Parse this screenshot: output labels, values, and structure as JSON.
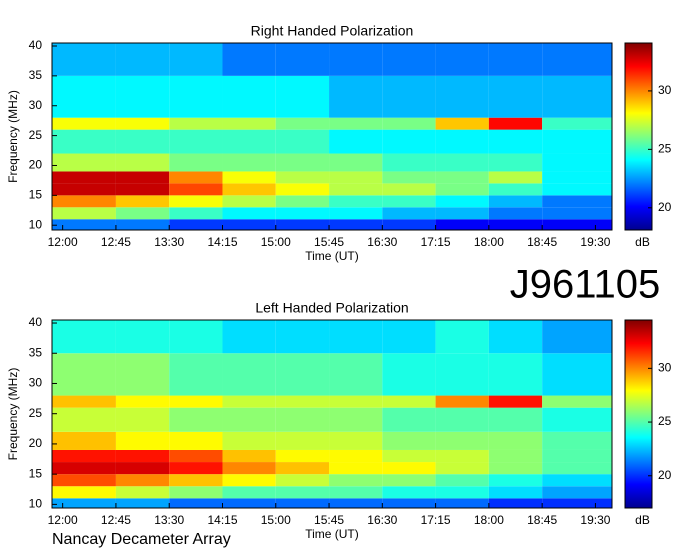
{
  "page_title": "J961105",
  "footer": "Nancay Decameter Array",
  "chart_data": [
    {
      "type": "heatmap",
      "title": "Right Handed Polarization",
      "xlabel": "Time (UT)",
      "ylabel": "Frequency (MHz)",
      "colormap": "jet",
      "xbins": [
        711,
        765,
        810,
        855,
        900,
        945,
        990,
        1035,
        1080,
        1125,
        1184
      ],
      "ybins": [
        9,
        11,
        13,
        15,
        17,
        19,
        22,
        26,
        28,
        35,
        40.5
      ],
      "values": [
        [
          22,
          22,
          21,
          21,
          21,
          21,
          21,
          20,
          20,
          20
        ],
        [
          27,
          26,
          25,
          24,
          24,
          24,
          23,
          23,
          22,
          22
        ],
        [
          30,
          29,
          28,
          27,
          26,
          25,
          25,
          24,
          23,
          22
        ],
        [
          33,
          33,
          31,
          29,
          28,
          27,
          27,
          26,
          25,
          24
        ],
        [
          33,
          33,
          30,
          28,
          27,
          27,
          26,
          26,
          27,
          24
        ],
        [
          27,
          27,
          26,
          26,
          26,
          26,
          25,
          25,
          25,
          24
        ],
        [
          25,
          25,
          25,
          25,
          25,
          24,
          24,
          24,
          24,
          24
        ],
        [
          28,
          28,
          27,
          27,
          26,
          26,
          26,
          29,
          32,
          25
        ],
        [
          24,
          24,
          24,
          24,
          24,
          23,
          23,
          23,
          23,
          23
        ],
        [
          23,
          23,
          23,
          22,
          22,
          22,
          22,
          22,
          22,
          22
        ]
      ],
      "xlim": [
        711,
        1184
      ],
      "ylim": [
        9.2,
        40.5
      ],
      "xticks": [
        {
          "value": 720,
          "label": "12:00"
        },
        {
          "value": 765,
          "label": "12:45"
        },
        {
          "value": 810,
          "label": "13:30"
        },
        {
          "value": 855,
          "label": "14:15"
        },
        {
          "value": 900,
          "label": "15:00"
        },
        {
          "value": 945,
          "label": "15:45"
        },
        {
          "value": 990,
          "label": "16:30"
        },
        {
          "value": 1035,
          "label": "17:15"
        },
        {
          "value": 1080,
          "label": "18:00"
        },
        {
          "value": 1125,
          "label": "18:45"
        },
        {
          "value": 1170,
          "label": "19:30"
        }
      ],
      "yticks": [
        10,
        15,
        20,
        25,
        30,
        35,
        40
      ],
      "colorbar": {
        "label": "dB",
        "lim": [
          18.1,
          34.1
        ],
        "ticks": [
          20,
          25,
          30
        ]
      }
    },
    {
      "type": "heatmap",
      "title": "Left Handed Polarization",
      "xlabel": "Time (UT)",
      "ylabel": "Frequency (MHz)",
      "colormap": "jet",
      "xbins": [
        711,
        765,
        810,
        855,
        900,
        945,
        990,
        1035,
        1080,
        1125,
        1184
      ],
      "ybins": [
        9,
        11,
        13,
        15,
        17,
        19,
        22,
        26,
        28,
        35,
        40.5
      ],
      "values": [
        [
          22,
          22,
          21,
          21,
          21,
          21,
          21,
          21,
          20,
          20
        ],
        [
          28,
          27,
          26,
          25,
          25,
          25,
          24,
          24,
          23,
          22
        ],
        [
          31,
          30,
          29,
          28,
          27,
          26,
          26,
          25,
          24,
          23
        ],
        [
          33,
          33,
          32,
          30,
          29,
          28,
          28,
          27,
          26,
          25
        ],
        [
          32,
          32,
          31,
          29,
          28,
          28,
          27,
          27,
          26,
          25
        ],
        [
          29,
          28,
          28,
          27,
          27,
          27,
          26,
          26,
          26,
          25
        ],
        [
          27,
          27,
          26,
          26,
          26,
          26,
          25,
          25,
          25,
          24
        ],
        [
          29,
          28,
          28,
          27,
          27,
          27,
          27,
          30,
          32,
          26
        ],
        [
          26,
          26,
          25,
          25,
          25,
          25,
          24,
          24,
          24,
          23
        ],
        [
          24,
          24,
          24,
          23,
          23,
          23,
          23,
          24,
          23,
          22
        ]
      ],
      "xlim": [
        711,
        1184
      ],
      "ylim": [
        9.4,
        40.5
      ],
      "xticks": [
        {
          "value": 720,
          "label": "12:00"
        },
        {
          "value": 765,
          "label": "12:45"
        },
        {
          "value": 810,
          "label": "13:30"
        },
        {
          "value": 855,
          "label": "14:15"
        },
        {
          "value": 900,
          "label": "15:00"
        },
        {
          "value": 945,
          "label": "15:45"
        },
        {
          "value": 990,
          "label": "16:30"
        },
        {
          "value": 1035,
          "label": "17:15"
        },
        {
          "value": 1080,
          "label": "18:00"
        },
        {
          "value": 1125,
          "label": "18:45"
        },
        {
          "value": 1170,
          "label": "19:30"
        }
      ],
      "yticks": [
        10,
        15,
        20,
        25,
        30,
        35,
        40
      ],
      "colorbar": {
        "label": "dB",
        "lim": [
          17,
          34.5
        ],
        "ticks": [
          20,
          25,
          30
        ]
      }
    }
  ]
}
